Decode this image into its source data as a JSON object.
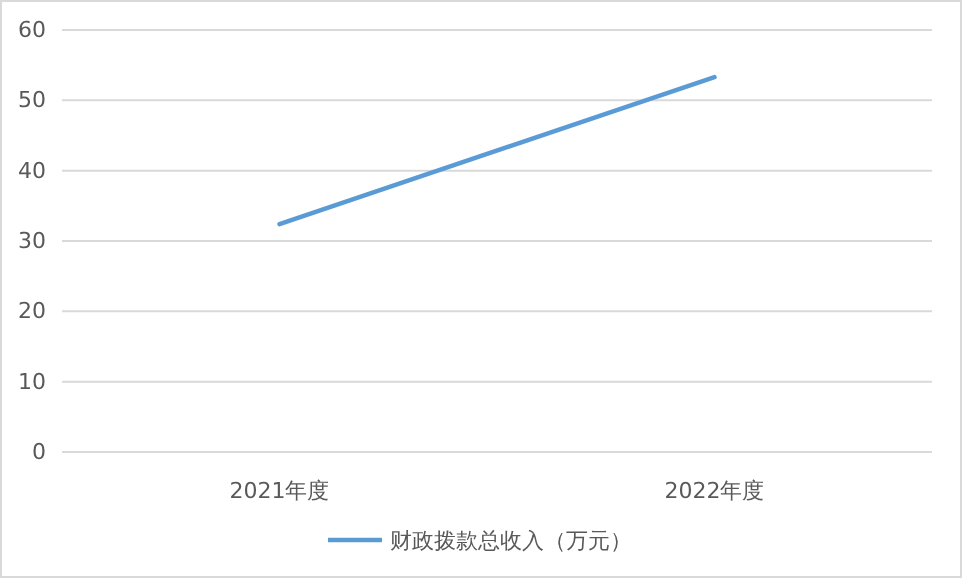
{
  "chart_data": {
    "type": "line",
    "categories": [
      "2021年度",
      "2022年度"
    ],
    "series": [
      {
        "name": "财政拨款总收入（万元）",
        "color": "#5b9bd5",
        "values": [
          32.4,
          53.3
        ]
      }
    ],
    "ylim": [
      0,
      60
    ],
    "yticks": [
      0,
      10,
      20,
      30,
      40,
      50,
      60
    ],
    "grid": "y",
    "legend": "bottom",
    "marker": "none",
    "line_style": "solid"
  }
}
